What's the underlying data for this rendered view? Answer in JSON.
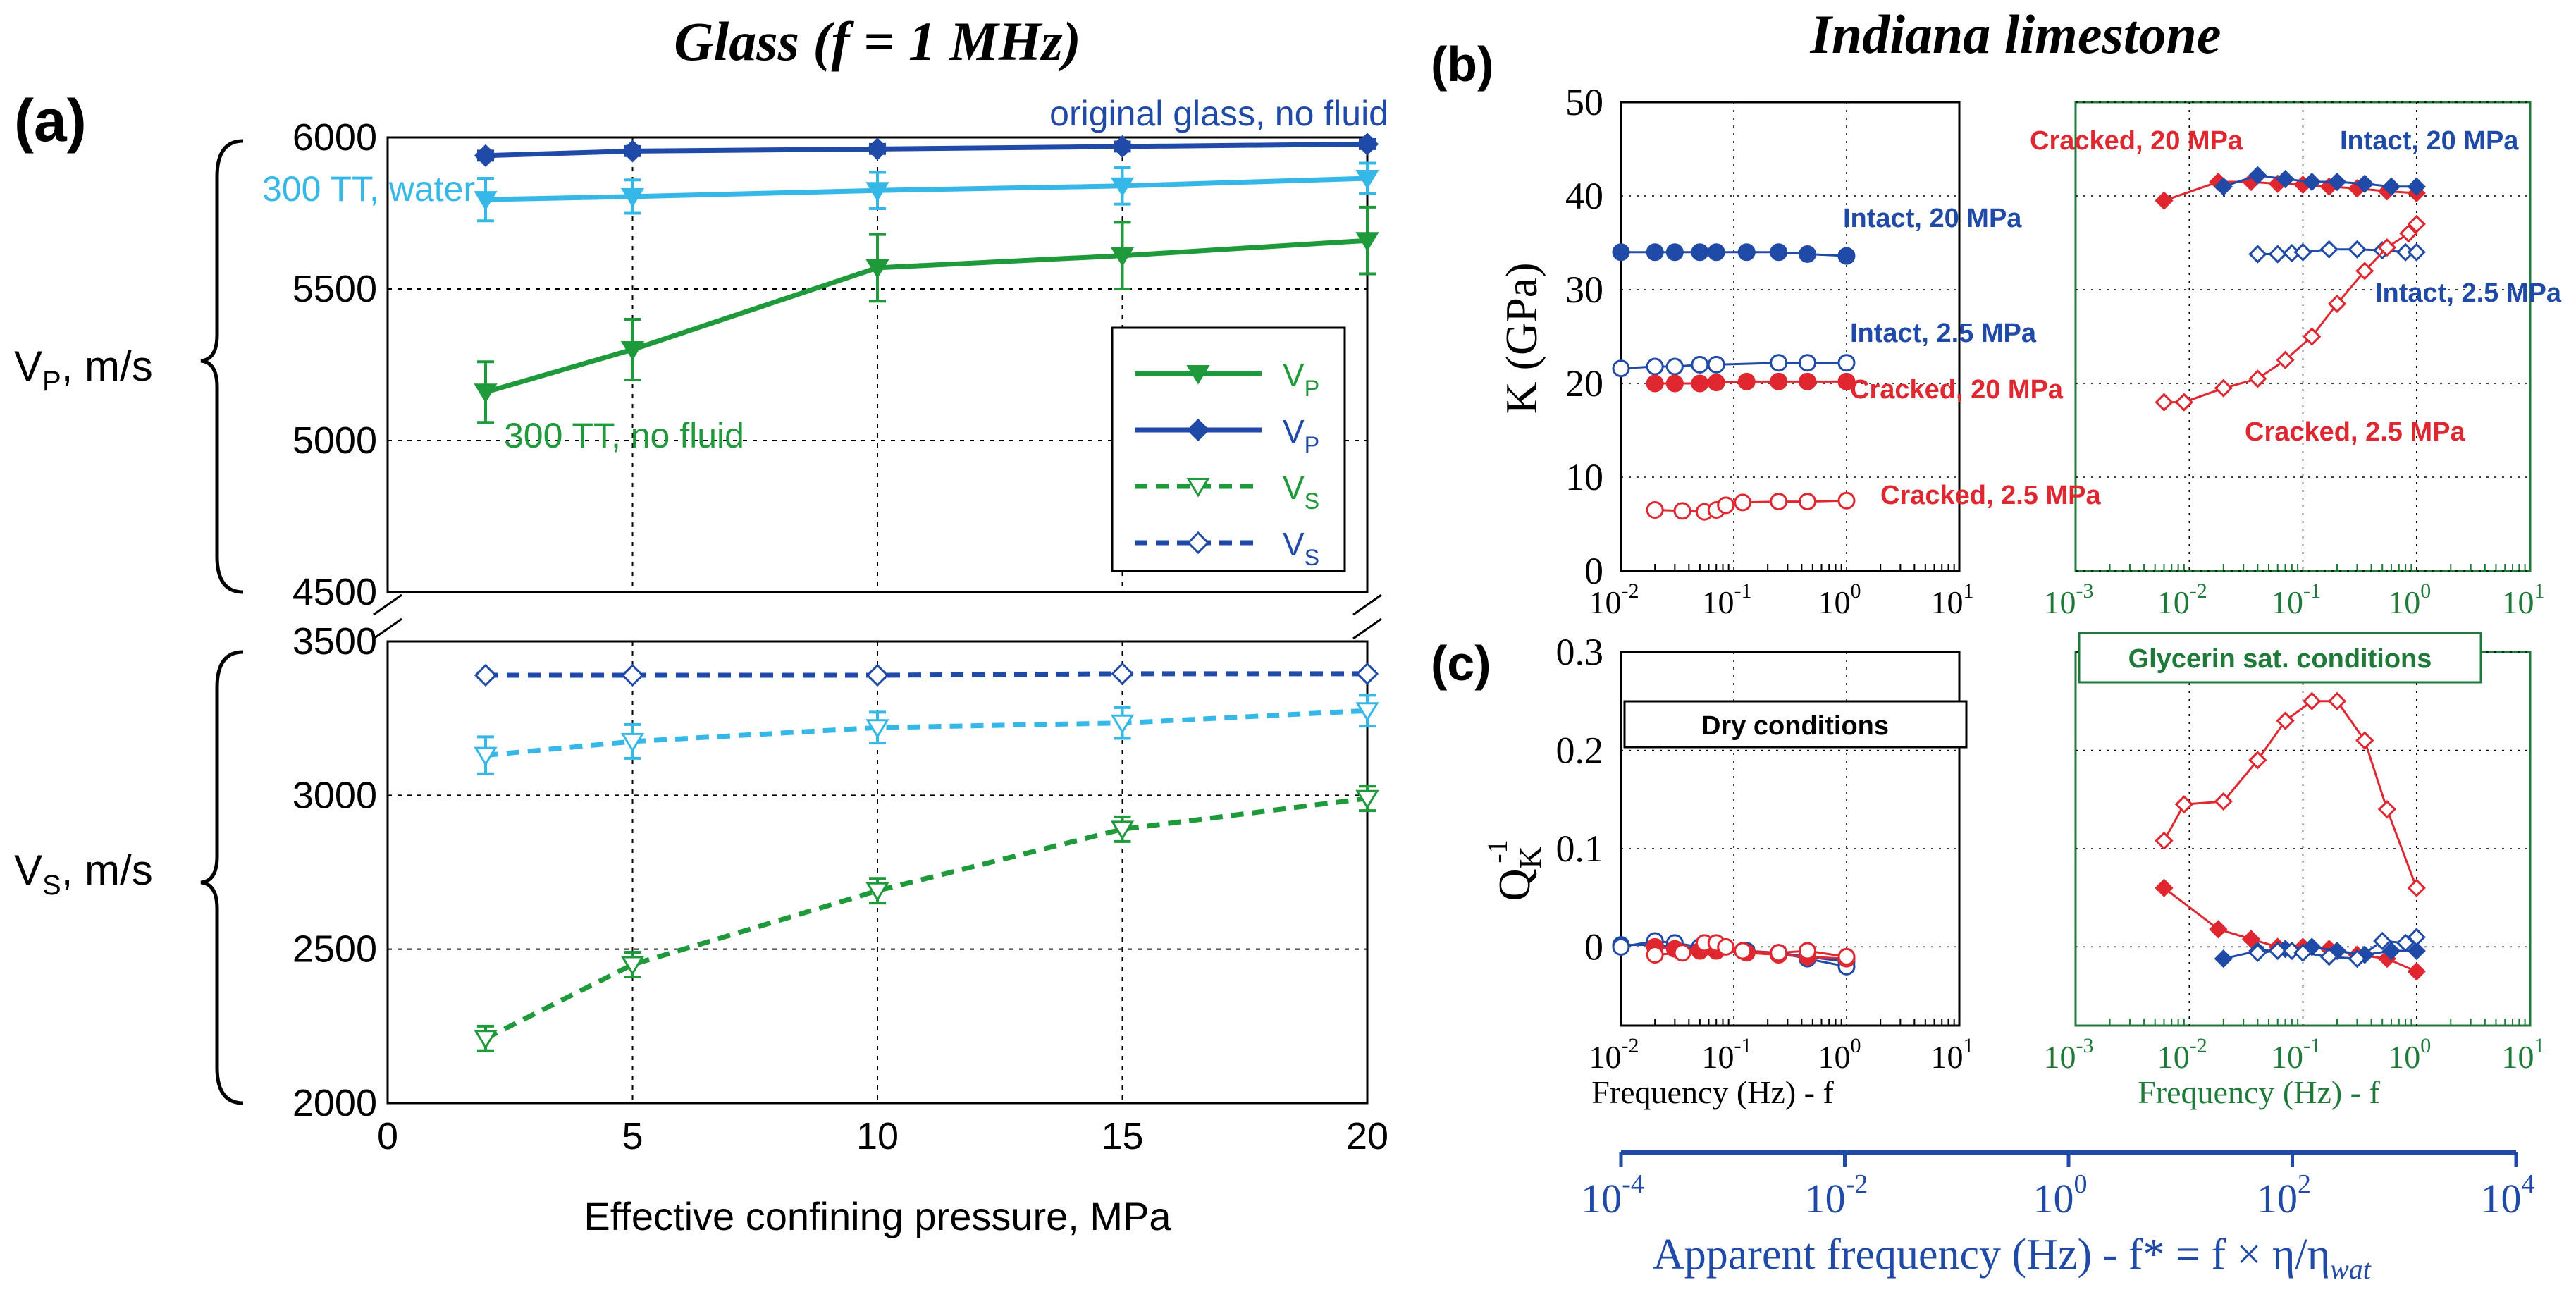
{
  "figure": {
    "panel_a_label": "(a)",
    "panel_b_label": "(b)",
    "panel_c_label": "(c)",
    "glass_title": "Glass (f = 1 MHz)",
    "limestone_title": "Indiana limestone",
    "vp_axis_label": "V",
    "vp_axis_sub": "P",
    "vp_axis_unit": ", m/s",
    "vs_axis_label": "V",
    "vs_axis_sub": "S",
    "vs_axis_unit": ", m/s",
    "apparent_axis_label": "Apparent frequency (Hz) - f* = f × η/η",
    "apparent_axis_sub": "wat",
    "apparent_ticks": [
      "10",
      "10",
      "10",
      "10",
      "10"
    ],
    "apparent_tick_exps": [
      "-4",
      "-2",
      "0",
      "2",
      "4"
    ]
  },
  "colors": {
    "green": "#1f9a3a",
    "dark_blue": "#1f4aa8",
    "light_blue": "#35b8e8",
    "red": "#e0262f",
    "green_axis": "#1f7a3a",
    "grid": "#000000"
  },
  "chart_data": [
    {
      "id": "glass",
      "type": "line",
      "title": "Glass (f = 1 MHz)",
      "xlabel": "Effective confining pressure, MPa",
      "x_ticks": [
        0,
        5,
        10,
        15,
        20
      ],
      "xlim": [
        0,
        20
      ],
      "vp_ylim": [
        4500,
        6000
      ],
      "vp_ticks": [
        4500,
        5000,
        5500,
        6000
      ],
      "vs_ylim": [
        2000,
        3500
      ],
      "vs_ticks": [
        2000,
        2500,
        3000,
        3500
      ],
      "x": [
        2,
        5,
        10,
        15,
        20
      ],
      "series": [
        {
          "name": "original glass, no fluid",
          "wave": "VP",
          "color": "#1f4aa8",
          "marker": "diamond",
          "filled": true,
          "dashed": false,
          "values": [
            5940,
            5955,
            5962,
            5970,
            5978
          ],
          "err": [
            15,
            15,
            15,
            15,
            15
          ]
        },
        {
          "name": "300 TT, water",
          "wave": "VP",
          "color": "#35b8e8",
          "marker": "triangle-down",
          "filled": true,
          "dashed": false,
          "values": [
            5795,
            5805,
            5825,
            5840,
            5865
          ],
          "err": [
            70,
            55,
            60,
            60,
            50
          ]
        },
        {
          "name": "300 TT, no fluid",
          "wave": "VP",
          "color": "#1f9a3a",
          "marker": "triangle-down",
          "filled": true,
          "dashed": false,
          "values": [
            5160,
            5300,
            5570,
            5610,
            5660
          ],
          "err": [
            100,
            100,
            110,
            110,
            110
          ]
        },
        {
          "name": "original glass, no fluid",
          "wave": "VS",
          "color": "#1f4aa8",
          "marker": "diamond",
          "filled": false,
          "dashed": true,
          "values": [
            3390,
            3390,
            3390,
            3395,
            3395
          ],
          "err": [
            8,
            8,
            8,
            8,
            8
          ]
        },
        {
          "name": "300 TT, water",
          "wave": "VS",
          "color": "#35b8e8",
          "marker": "triangle-down",
          "filled": false,
          "dashed": true,
          "values": [
            3130,
            3175,
            3220,
            3235,
            3275
          ],
          "err": [
            60,
            55,
            50,
            50,
            50
          ]
        },
        {
          "name": "300 TT, no fluid",
          "wave": "VS",
          "color": "#1f9a3a",
          "marker": "triangle-down",
          "filled": false,
          "dashed": true,
          "values": [
            2210,
            2450,
            2690,
            2890,
            2990
          ],
          "err": [
            40,
            40,
            40,
            40,
            40
          ]
        }
      ],
      "annotations": [
        "original glass, no fluid",
        "300 TT, water",
        "300 TT, no fluid"
      ],
      "legend": [
        {
          "label": "V",
          "sub": "P",
          "color": "#1f9a3a",
          "marker": "triangle-down",
          "filled": true,
          "dashed": false
        },
        {
          "label": "V",
          "sub": "P",
          "color": "#1f4aa8",
          "marker": "diamond",
          "filled": true,
          "dashed": false
        },
        {
          "label": "V",
          "sub": "S",
          "color": "#1f9a3a",
          "marker": "triangle-down",
          "filled": false,
          "dashed": true
        },
        {
          "label": "V",
          "sub": "S",
          "color": "#1f4aa8",
          "marker": "diamond",
          "filled": false,
          "dashed": true
        }
      ]
    },
    {
      "id": "bulk-modulus",
      "type": "scatter",
      "ylabel": "K (GPa)",
      "ylim": [
        0,
        50
      ],
      "y_ticks": [
        0,
        10,
        20,
        30,
        40,
        50
      ],
      "x_log_range": [
        -2,
        1
      ],
      "x_tick_base": "10",
      "x_tick_exps": [
        "-2",
        "-1",
        "0",
        "1"
      ],
      "x_tick_exps_right": [
        "-3",
        "-2",
        "-1",
        "0",
        "1"
      ],
      "dry": [
        {
          "label": "Intact, 20 MPa",
          "color": "#1f4aa8",
          "filled": true,
          "marker": "circle",
          "x": [
            0.01,
            0.02,
            0.03,
            0.05,
            0.07,
            0.13,
            0.25,
            0.45,
            1.0
          ],
          "y": [
            34,
            34,
            34,
            34,
            34,
            34,
            34,
            33.8,
            33.6
          ]
        },
        {
          "label": "Intact, 2.5 MPa",
          "color": "#1f4aa8",
          "filled": false,
          "marker": "circle",
          "x": [
            0.01,
            0.02,
            0.03,
            0.05,
            0.07,
            0.25,
            0.45,
            1.0
          ],
          "y": [
            21.6,
            21.8,
            21.8,
            22.0,
            22.0,
            22.2,
            22.2,
            22.2
          ]
        },
        {
          "label": "Cracked, 20 MPa",
          "color": "#e0262f",
          "filled": true,
          "marker": "circle",
          "x": [
            0.02,
            0.03,
            0.05,
            0.07,
            0.13,
            0.25,
            0.45,
            1.0
          ],
          "y": [
            20.0,
            20.0,
            20.0,
            20.1,
            20.2,
            20.2,
            20.2,
            20.2
          ]
        },
        {
          "label": "Cracked, 2.5 MPa",
          "color": "#e0262f",
          "filled": false,
          "marker": "circle",
          "x": [
            0.02,
            0.035,
            0.055,
            0.07,
            0.085,
            0.12,
            0.25,
            0.45,
            1.0
          ],
          "y": [
            6.5,
            6.4,
            6.3,
            6.5,
            7.0,
            7.3,
            7.4,
            7.4,
            7.5
          ]
        }
      ],
      "glycerin": [
        {
          "label": "Cracked, 20 MPa",
          "color": "#e0262f",
          "filled": true,
          "marker": "diamond",
          "x": [
            0.006,
            0.018,
            0.035,
            0.06,
            0.1,
            0.17,
            0.3,
            0.55,
            1.0
          ],
          "y": [
            39.5,
            41.5,
            41.5,
            41.3,
            41.2,
            41.0,
            40.8,
            40.5,
            40.3
          ]
        },
        {
          "label": "Intact, 20 MPa",
          "color": "#1f4aa8",
          "filled": true,
          "marker": "diamond",
          "x": [
            0.02,
            0.04,
            0.07,
            0.12,
            0.2,
            0.35,
            0.6,
            1.0
          ],
          "y": [
            41.0,
            42.2,
            41.8,
            41.5,
            41.5,
            41.3,
            41.0,
            41.0
          ]
        },
        {
          "label": "Intact, 2.5 MPa",
          "color": "#1f4aa8",
          "filled": false,
          "marker": "diamond",
          "x": [
            0.04,
            0.06,
            0.08,
            0.1,
            0.17,
            0.3,
            0.5,
            0.8,
            1.0
          ],
          "y": [
            33.8,
            33.8,
            33.9,
            34.0,
            34.3,
            34.3,
            34.2,
            34.0,
            34.0
          ]
        },
        {
          "label": "Cracked, 2.5 MPa",
          "color": "#e0262f",
          "filled": false,
          "marker": "diamond",
          "x": [
            0.006,
            0.009,
            0.02,
            0.04,
            0.07,
            0.12,
            0.2,
            0.35,
            0.55,
            0.85,
            1.0
          ],
          "y": [
            18.0,
            18.0,
            19.5,
            20.5,
            22.5,
            25.0,
            28.5,
            32.0,
            34.5,
            36.0,
            37.0
          ]
        }
      ],
      "labels": {
        "dry_intact_20": "Intact, 20 MPa",
        "dry_intact_25": "Intact, 2.5 MPa",
        "dry_cracked_20": "Cracked, 20 MPa",
        "dry_cracked_25": "Cracked, 2.5 MPa",
        "gly_cracked_20": "Cracked, 20 MPa",
        "gly_intact_20": "Intact, 20 MPa",
        "gly_intact_25": "Intact, 2.5 MPa",
        "gly_cracked_25": "Cracked, 2.5 MPa"
      }
    },
    {
      "id": "attenuation",
      "type": "scatter",
      "ylabel": "Q",
      "ylabel_sub": "K",
      "ylabel_sup": "-1",
      "ylim": [
        -0.08,
        0.3
      ],
      "y_ticks": [
        0,
        0.1,
        0.2,
        0.3
      ],
      "xlabel": "Frequency (Hz) - f",
      "dry_box": "Dry conditions",
      "glycerin_box": "Glycerin sat. conditions",
      "dry": [
        {
          "color": "#1f4aa8",
          "filled": true,
          "marker": "circle",
          "x": [
            0.01,
            0.02,
            0.03,
            0.05,
            0.07,
            0.13,
            0.25,
            0.45,
            1.0
          ],
          "y": [
            0.002,
            0.002,
            0.0,
            -0.001,
            -0.002,
            -0.004,
            -0.006,
            -0.01,
            -0.015
          ]
        },
        {
          "color": "#1f4aa8",
          "filled": false,
          "marker": "circle",
          "x": [
            0.01,
            0.02,
            0.03,
            0.05,
            0.07,
            0.25,
            0.45,
            1.0
          ],
          "y": [
            0.0,
            0.006,
            0.004,
            0.0,
            -0.004,
            -0.006,
            -0.012,
            -0.02
          ]
        },
        {
          "color": "#e0262f",
          "filled": true,
          "marker": "circle",
          "x": [
            0.02,
            0.03,
            0.05,
            0.07,
            0.13,
            0.25,
            0.45,
            1.0
          ],
          "y": [
            0.0,
            -0.002,
            -0.004,
            -0.004,
            -0.006,
            -0.008,
            -0.01,
            -0.012
          ]
        },
        {
          "color": "#e0262f",
          "filled": false,
          "marker": "circle",
          "x": [
            0.02,
            0.035,
            0.055,
            0.07,
            0.085,
            0.12,
            0.25,
            0.45,
            1.0
          ],
          "y": [
            -0.008,
            -0.006,
            0.004,
            0.004,
            0.0,
            -0.004,
            -0.006,
            -0.004,
            -0.01
          ]
        }
      ],
      "glycerin": [
        {
          "color": "#e0262f",
          "filled": false,
          "marker": "diamond",
          "x": [
            0.006,
            0.009,
            0.02,
            0.04,
            0.07,
            0.12,
            0.2,
            0.35,
            0.55,
            1.0
          ],
          "y": [
            0.108,
            0.145,
            0.148,
            0.19,
            0.23,
            0.25,
            0.25,
            0.21,
            0.14,
            0.06
          ]
        },
        {
          "color": "#e0262f",
          "filled": true,
          "marker": "diamond",
          "x": [
            0.006,
            0.018,
            0.035,
            0.06,
            0.1,
            0.17,
            0.3,
            0.55,
            1.0
          ],
          "y": [
            0.06,
            0.018,
            0.008,
            0.0,
            0.0,
            -0.002,
            -0.008,
            -0.012,
            -0.025
          ]
        },
        {
          "color": "#1f4aa8",
          "filled": true,
          "marker": "diamond",
          "x": [
            0.02,
            0.04,
            0.07,
            0.12,
            0.2,
            0.35,
            0.6,
            1.0
          ],
          "y": [
            -0.012,
            -0.004,
            -0.002,
            0.0,
            -0.004,
            -0.008,
            -0.004,
            -0.004
          ]
        },
        {
          "color": "#1f4aa8",
          "filled": false,
          "marker": "diamond",
          "x": [
            0.04,
            0.06,
            0.08,
            0.1,
            0.17,
            0.3,
            0.5,
            0.8,
            1.0
          ],
          "y": [
            -0.006,
            -0.004,
            -0.004,
            -0.006,
            -0.01,
            -0.012,
            0.006,
            0.004,
            0.01
          ]
        }
      ]
    }
  ]
}
